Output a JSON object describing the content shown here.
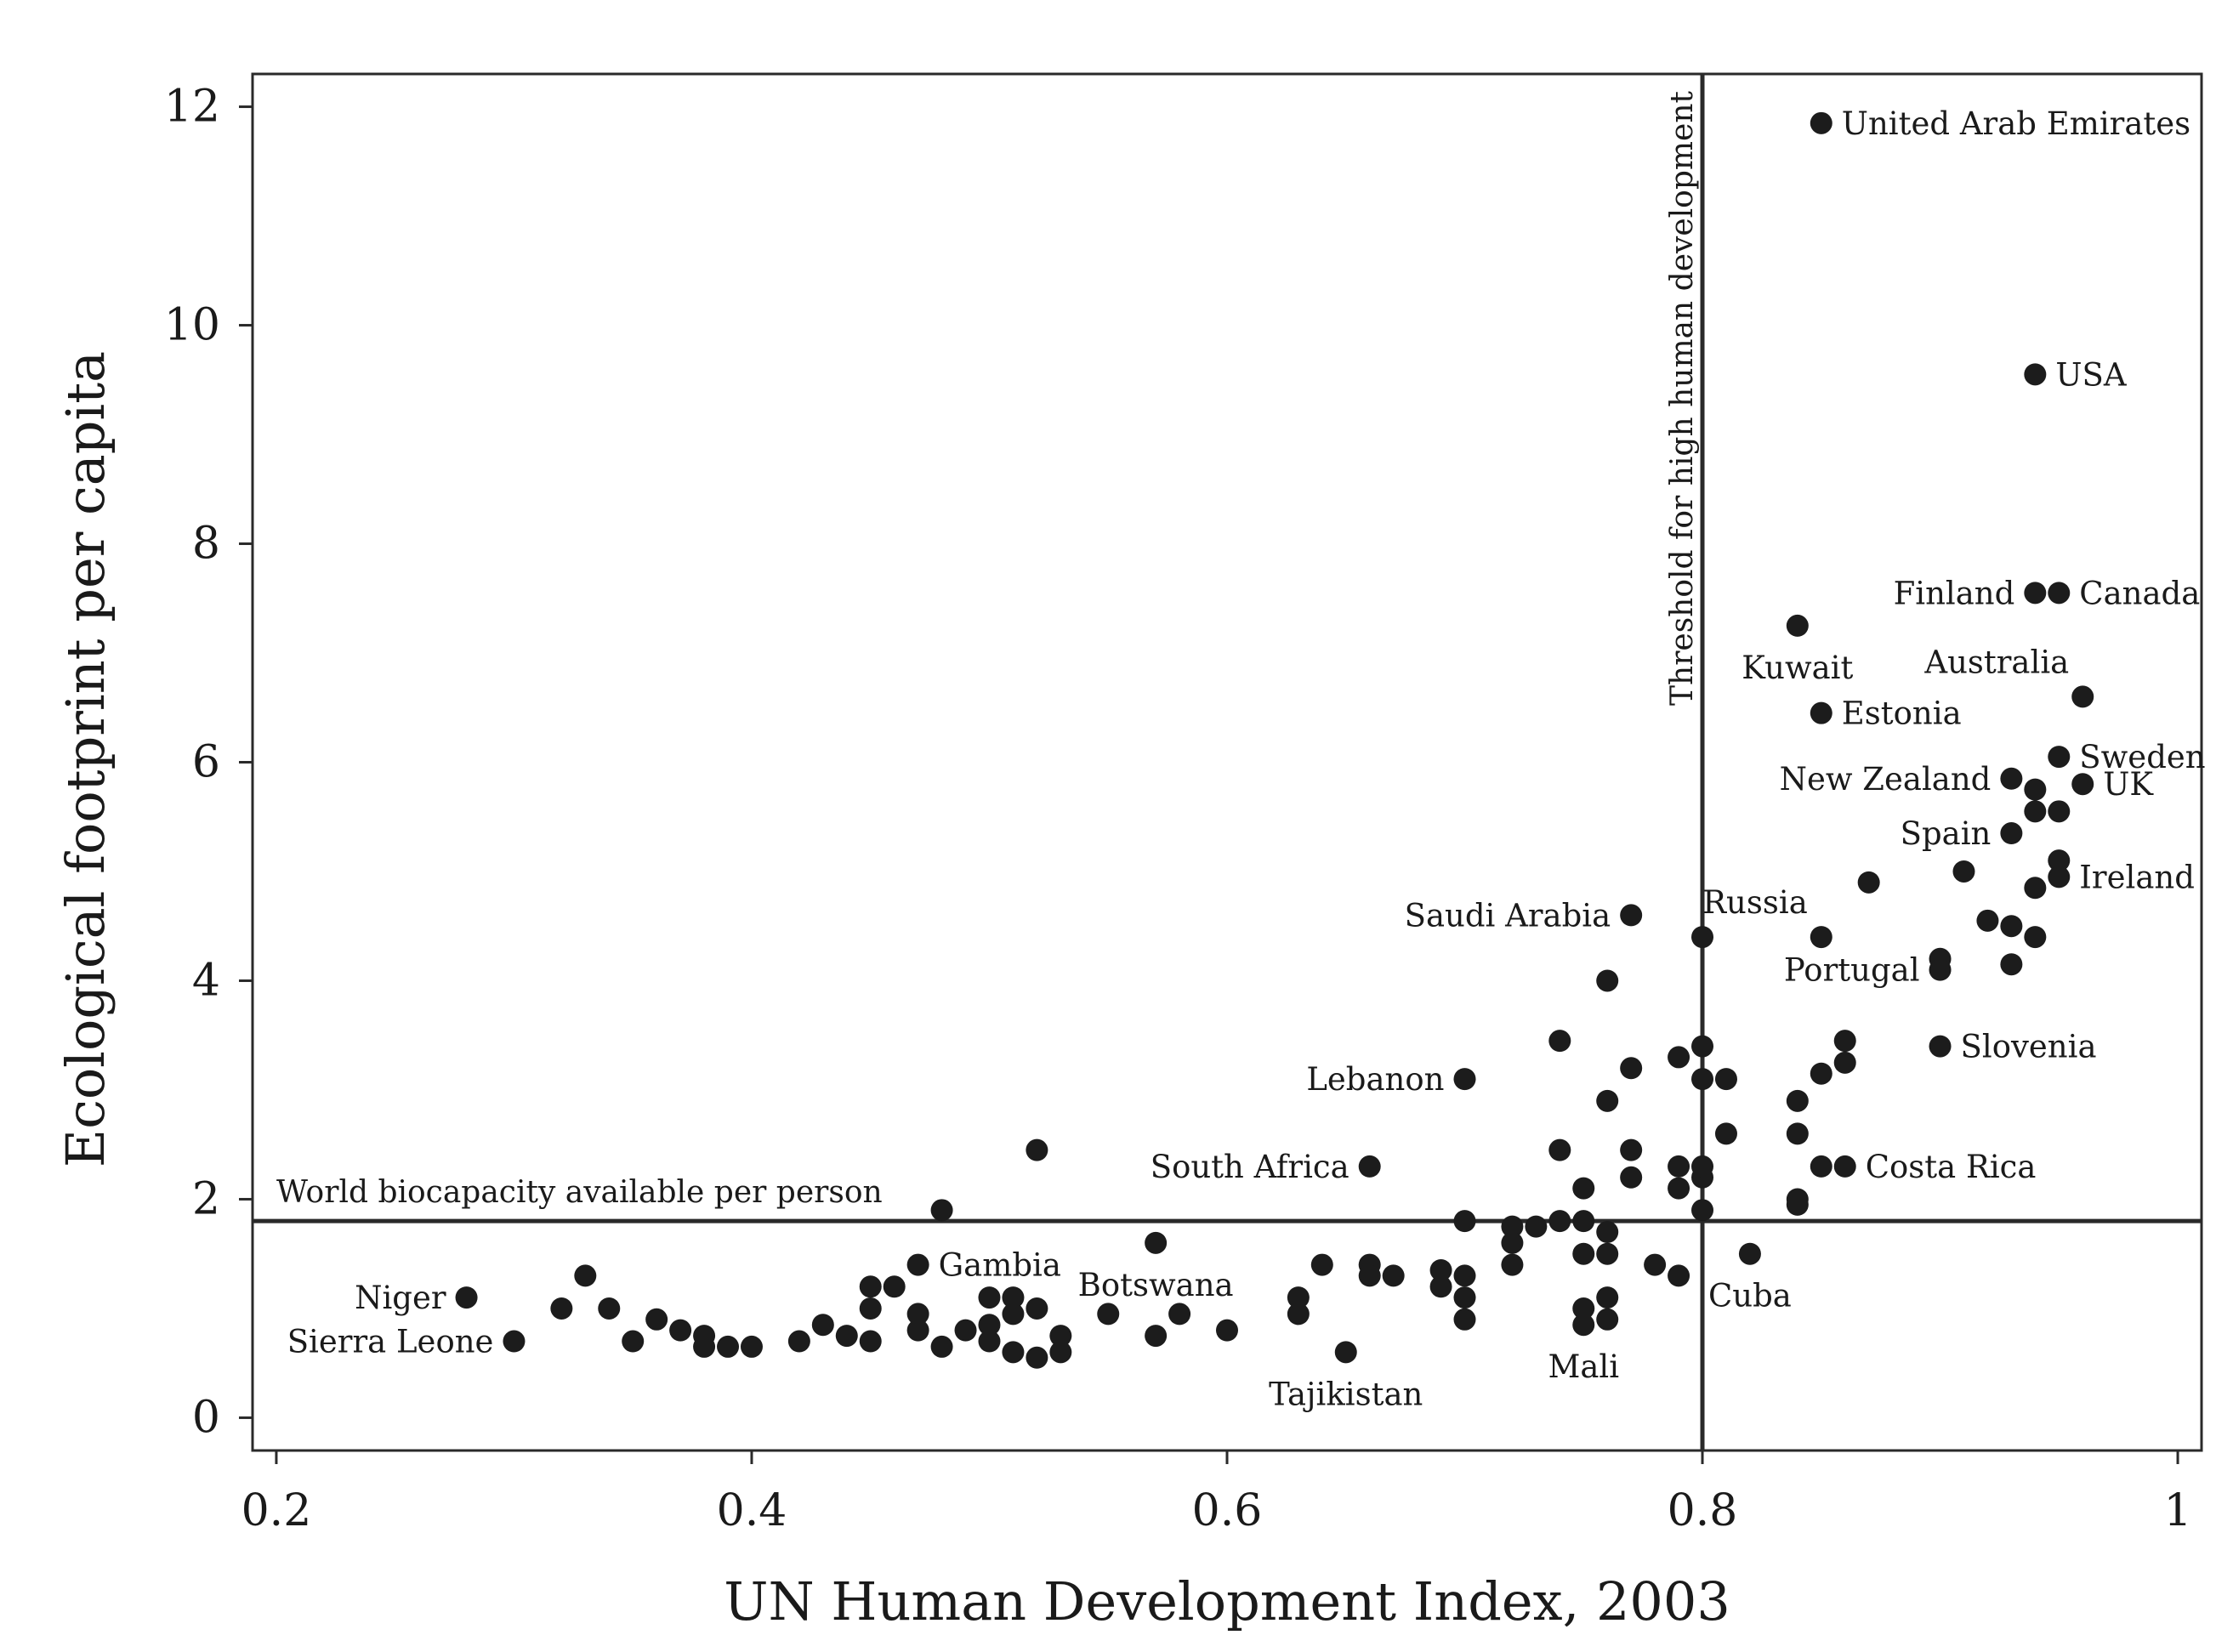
{
  "chart_data": {
    "type": "scatter",
    "title": "",
    "xlabel": "UN Human Development Index, 2003",
    "ylabel": "Ecological footprint per capita",
    "xlim": [
      0.19,
      1.01
    ],
    "ylim": [
      -0.3,
      12.3
    ],
    "xticks": [
      {
        "value": 0.2,
        "label": "0.2"
      },
      {
        "value": 0.4,
        "label": "0.4"
      },
      {
        "value": 0.6,
        "label": "0.6"
      },
      {
        "value": 0.8,
        "label": "0.8"
      },
      {
        "value": 1.0,
        "label": "1"
      }
    ],
    "yticks": [
      {
        "value": 0,
        "label": "0"
      },
      {
        "value": 2,
        "label": "2"
      },
      {
        "value": 4,
        "label": "4"
      },
      {
        "value": 6,
        "label": "6"
      },
      {
        "value": 8,
        "label": "8"
      },
      {
        "value": 10,
        "label": "10"
      },
      {
        "value": 12,
        "label": "12"
      }
    ],
    "grid": false,
    "reference_lines": [
      {
        "orientation": "horizontal",
        "value": 1.8,
        "label": "World biocapacity available per person"
      },
      {
        "orientation": "vertical",
        "value": 0.8,
        "label": "Threshold for high human development"
      }
    ],
    "colors": {
      "points": "#1c1c1c",
      "lines": "#2a2a2a",
      "text": "#1a1a1a"
    },
    "labeled_points": [
      {
        "label": "United Arab Emirates",
        "x": 0.85,
        "y": 11.85,
        "label_pos": "right"
      },
      {
        "label": "USA",
        "x": 0.94,
        "y": 9.55,
        "label_pos": "right"
      },
      {
        "label": "Finland",
        "x": 0.94,
        "y": 7.55,
        "label_pos": "left"
      },
      {
        "label": "Canada",
        "x": 0.95,
        "y": 7.55,
        "label_pos": "right"
      },
      {
        "label": "Kuwait",
        "x": 0.84,
        "y": 7.25,
        "label_pos": "below"
      },
      {
        "label": "Australia",
        "x": 0.96,
        "y": 6.6,
        "label_pos": "above-left"
      },
      {
        "label": "Estonia",
        "x": 0.85,
        "y": 6.45,
        "label_pos": "right"
      },
      {
        "label": "Sweden",
        "x": 0.95,
        "y": 6.05,
        "label_pos": "right"
      },
      {
        "label": "New Zealand",
        "x": 0.93,
        "y": 5.85,
        "label_pos": "left"
      },
      {
        "label": "UK",
        "x": 0.96,
        "y": 5.8,
        "label_pos": "right"
      },
      {
        "label": "Spain",
        "x": 0.93,
        "y": 5.35,
        "label_pos": "left"
      },
      {
        "label": "Ireland",
        "x": 0.95,
        "y": 4.95,
        "label_pos": "right"
      },
      {
        "label": "Russia",
        "x": 0.85,
        "y": 4.4,
        "label_pos": "above-left"
      },
      {
        "label": "Saudi Arabia",
        "x": 0.77,
        "y": 4.6,
        "label_pos": "left"
      },
      {
        "label": "Portugal",
        "x": 0.9,
        "y": 4.1,
        "label_pos": "left"
      },
      {
        "label": "Slovenia",
        "x": 0.9,
        "y": 3.4,
        "label_pos": "right"
      },
      {
        "label": "Lebanon",
        "x": 0.7,
        "y": 3.1,
        "label_pos": "left"
      },
      {
        "label": "South Africa",
        "x": 0.66,
        "y": 2.3,
        "label_pos": "left"
      },
      {
        "label": "Costa Rica",
        "x": 0.86,
        "y": 2.3,
        "label_pos": "right"
      },
      {
        "label": "Gambia",
        "x": 0.47,
        "y": 1.4,
        "label_pos": "right"
      },
      {
        "label": "Botswana",
        "x": 0.57,
        "y": 1.6,
        "label_pos": "below"
      },
      {
        "label": "Cuba",
        "x": 0.82,
        "y": 1.5,
        "label_pos": "below"
      },
      {
        "label": "Niger",
        "x": 0.28,
        "y": 1.1,
        "label_pos": "left"
      },
      {
        "label": "Sierra Leone",
        "x": 0.3,
        "y": 0.7,
        "label_pos": "left"
      },
      {
        "label": "Tajikistan",
        "x": 0.65,
        "y": 0.6,
        "label_pos": "below"
      },
      {
        "label": "Mali",
        "x": 0.75,
        "y": 0.85,
        "label_pos": "below"
      }
    ],
    "points": [
      [
        0.33,
        1.3
      ],
      [
        0.32,
        1.0
      ],
      [
        0.34,
        1.0
      ],
      [
        0.35,
        0.7
      ],
      [
        0.36,
        0.9
      ],
      [
        0.37,
        0.8
      ],
      [
        0.38,
        0.75
      ],
      [
        0.38,
        0.65
      ],
      [
        0.39,
        0.65
      ],
      [
        0.4,
        0.65
      ],
      [
        0.42,
        0.7
      ],
      [
        0.43,
        0.85
      ],
      [
        0.44,
        0.75
      ],
      [
        0.45,
        0.7
      ],
      [
        0.45,
        1.0
      ],
      [
        0.45,
        1.2
      ],
      [
        0.46,
        1.2
      ],
      [
        0.47,
        0.95
      ],
      [
        0.47,
        0.8
      ],
      [
        0.48,
        0.65
      ],
      [
        0.48,
        1.9
      ],
      [
        0.49,
        0.8
      ],
      [
        0.5,
        0.85
      ],
      [
        0.5,
        1.1
      ],
      [
        0.5,
        0.7
      ],
      [
        0.51,
        0.95
      ],
      [
        0.51,
        0.6
      ],
      [
        0.51,
        1.1
      ],
      [
        0.52,
        1.0
      ],
      [
        0.52,
        0.55
      ],
      [
        0.52,
        2.45
      ],
      [
        0.53,
        0.75
      ],
      [
        0.53,
        0.6
      ],
      [
        0.55,
        0.95
      ],
      [
        0.57,
        0.75
      ],
      [
        0.58,
        0.95
      ],
      [
        0.6,
        0.8
      ],
      [
        0.63,
        0.95
      ],
      [
        0.63,
        1.1
      ],
      [
        0.64,
        1.4
      ],
      [
        0.66,
        1.4
      ],
      [
        0.66,
        1.3
      ],
      [
        0.67,
        1.3
      ],
      [
        0.69,
        1.35
      ],
      [
        0.69,
        1.2
      ],
      [
        0.7,
        1.3
      ],
      [
        0.7,
        1.1
      ],
      [
        0.7,
        0.9
      ],
      [
        0.7,
        1.8
      ],
      [
        0.72,
        1.75
      ],
      [
        0.72,
        1.6
      ],
      [
        0.72,
        1.4
      ],
      [
        0.73,
        1.75
      ],
      [
        0.74,
        1.8
      ],
      [
        0.74,
        2.45
      ],
      [
        0.74,
        3.45
      ],
      [
        0.75,
        1.8
      ],
      [
        0.75,
        1.5
      ],
      [
        0.75,
        1.0
      ],
      [
        0.75,
        2.1
      ],
      [
        0.76,
        1.7
      ],
      [
        0.76,
        1.5
      ],
      [
        0.76,
        1.1
      ],
      [
        0.76,
        0.9
      ],
      [
        0.76,
        2.9
      ],
      [
        0.76,
        4.0
      ],
      [
        0.77,
        2.2
      ],
      [
        0.77,
        2.45
      ],
      [
        0.77,
        3.2
      ],
      [
        0.78,
        1.4
      ],
      [
        0.79,
        1.3
      ],
      [
        0.79,
        2.1
      ],
      [
        0.79,
        2.3
      ],
      [
        0.79,
        3.3
      ],
      [
        0.8,
        2.2
      ],
      [
        0.8,
        2.3
      ],
      [
        0.8,
        3.1
      ],
      [
        0.8,
        3.4
      ],
      [
        0.8,
        4.4
      ],
      [
        0.8,
        1.9
      ],
      [
        0.81,
        2.6
      ],
      [
        0.81,
        3.1
      ],
      [
        0.84,
        2.0
      ],
      [
        0.84,
        1.95
      ],
      [
        0.84,
        2.6
      ],
      [
        0.84,
        2.9
      ],
      [
        0.85,
        3.15
      ],
      [
        0.85,
        2.3
      ],
      [
        0.86,
        3.25
      ],
      [
        0.86,
        3.45
      ],
      [
        0.87,
        4.9
      ],
      [
        0.9,
        4.2
      ],
      [
        0.91,
        5.0
      ],
      [
        0.92,
        4.55
      ],
      [
        0.93,
        4.5
      ],
      [
        0.93,
        4.15
      ],
      [
        0.94,
        4.85
      ],
      [
        0.94,
        4.4
      ],
      [
        0.94,
        5.55
      ],
      [
        0.94,
        5.75
      ],
      [
        0.95,
        5.55
      ],
      [
        0.95,
        5.1
      ]
    ]
  }
}
